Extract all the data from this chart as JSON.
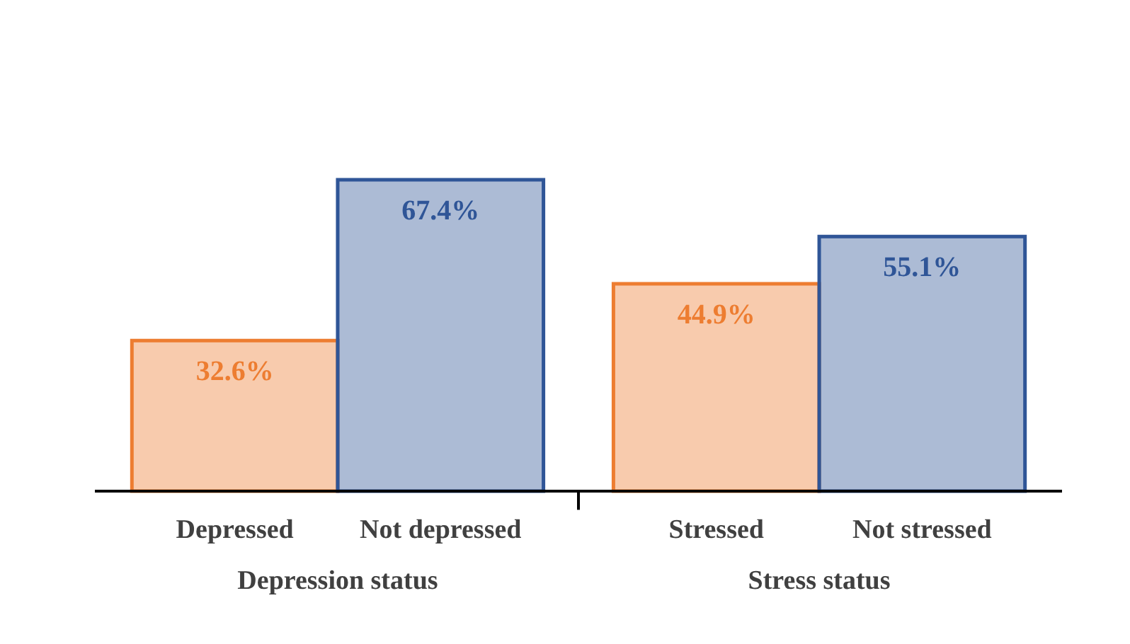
{
  "chart_data": {
    "type": "bar",
    "categories": [
      "Depressed",
      "Not depressed",
      "Stressed",
      "Not stressed"
    ],
    "values": [
      32.6,
      67.4,
      44.9,
      55.1
    ],
    "colors": [
      "#ed7d31",
      "#2f5597",
      "#ed7d31",
      "#2f5597"
    ],
    "value_labels": [
      "32.6%",
      "67.4%",
      "44.9%",
      "55.1%"
    ],
    "annotations": [
      "Depression status",
      "Stress status"
    ]
  }
}
